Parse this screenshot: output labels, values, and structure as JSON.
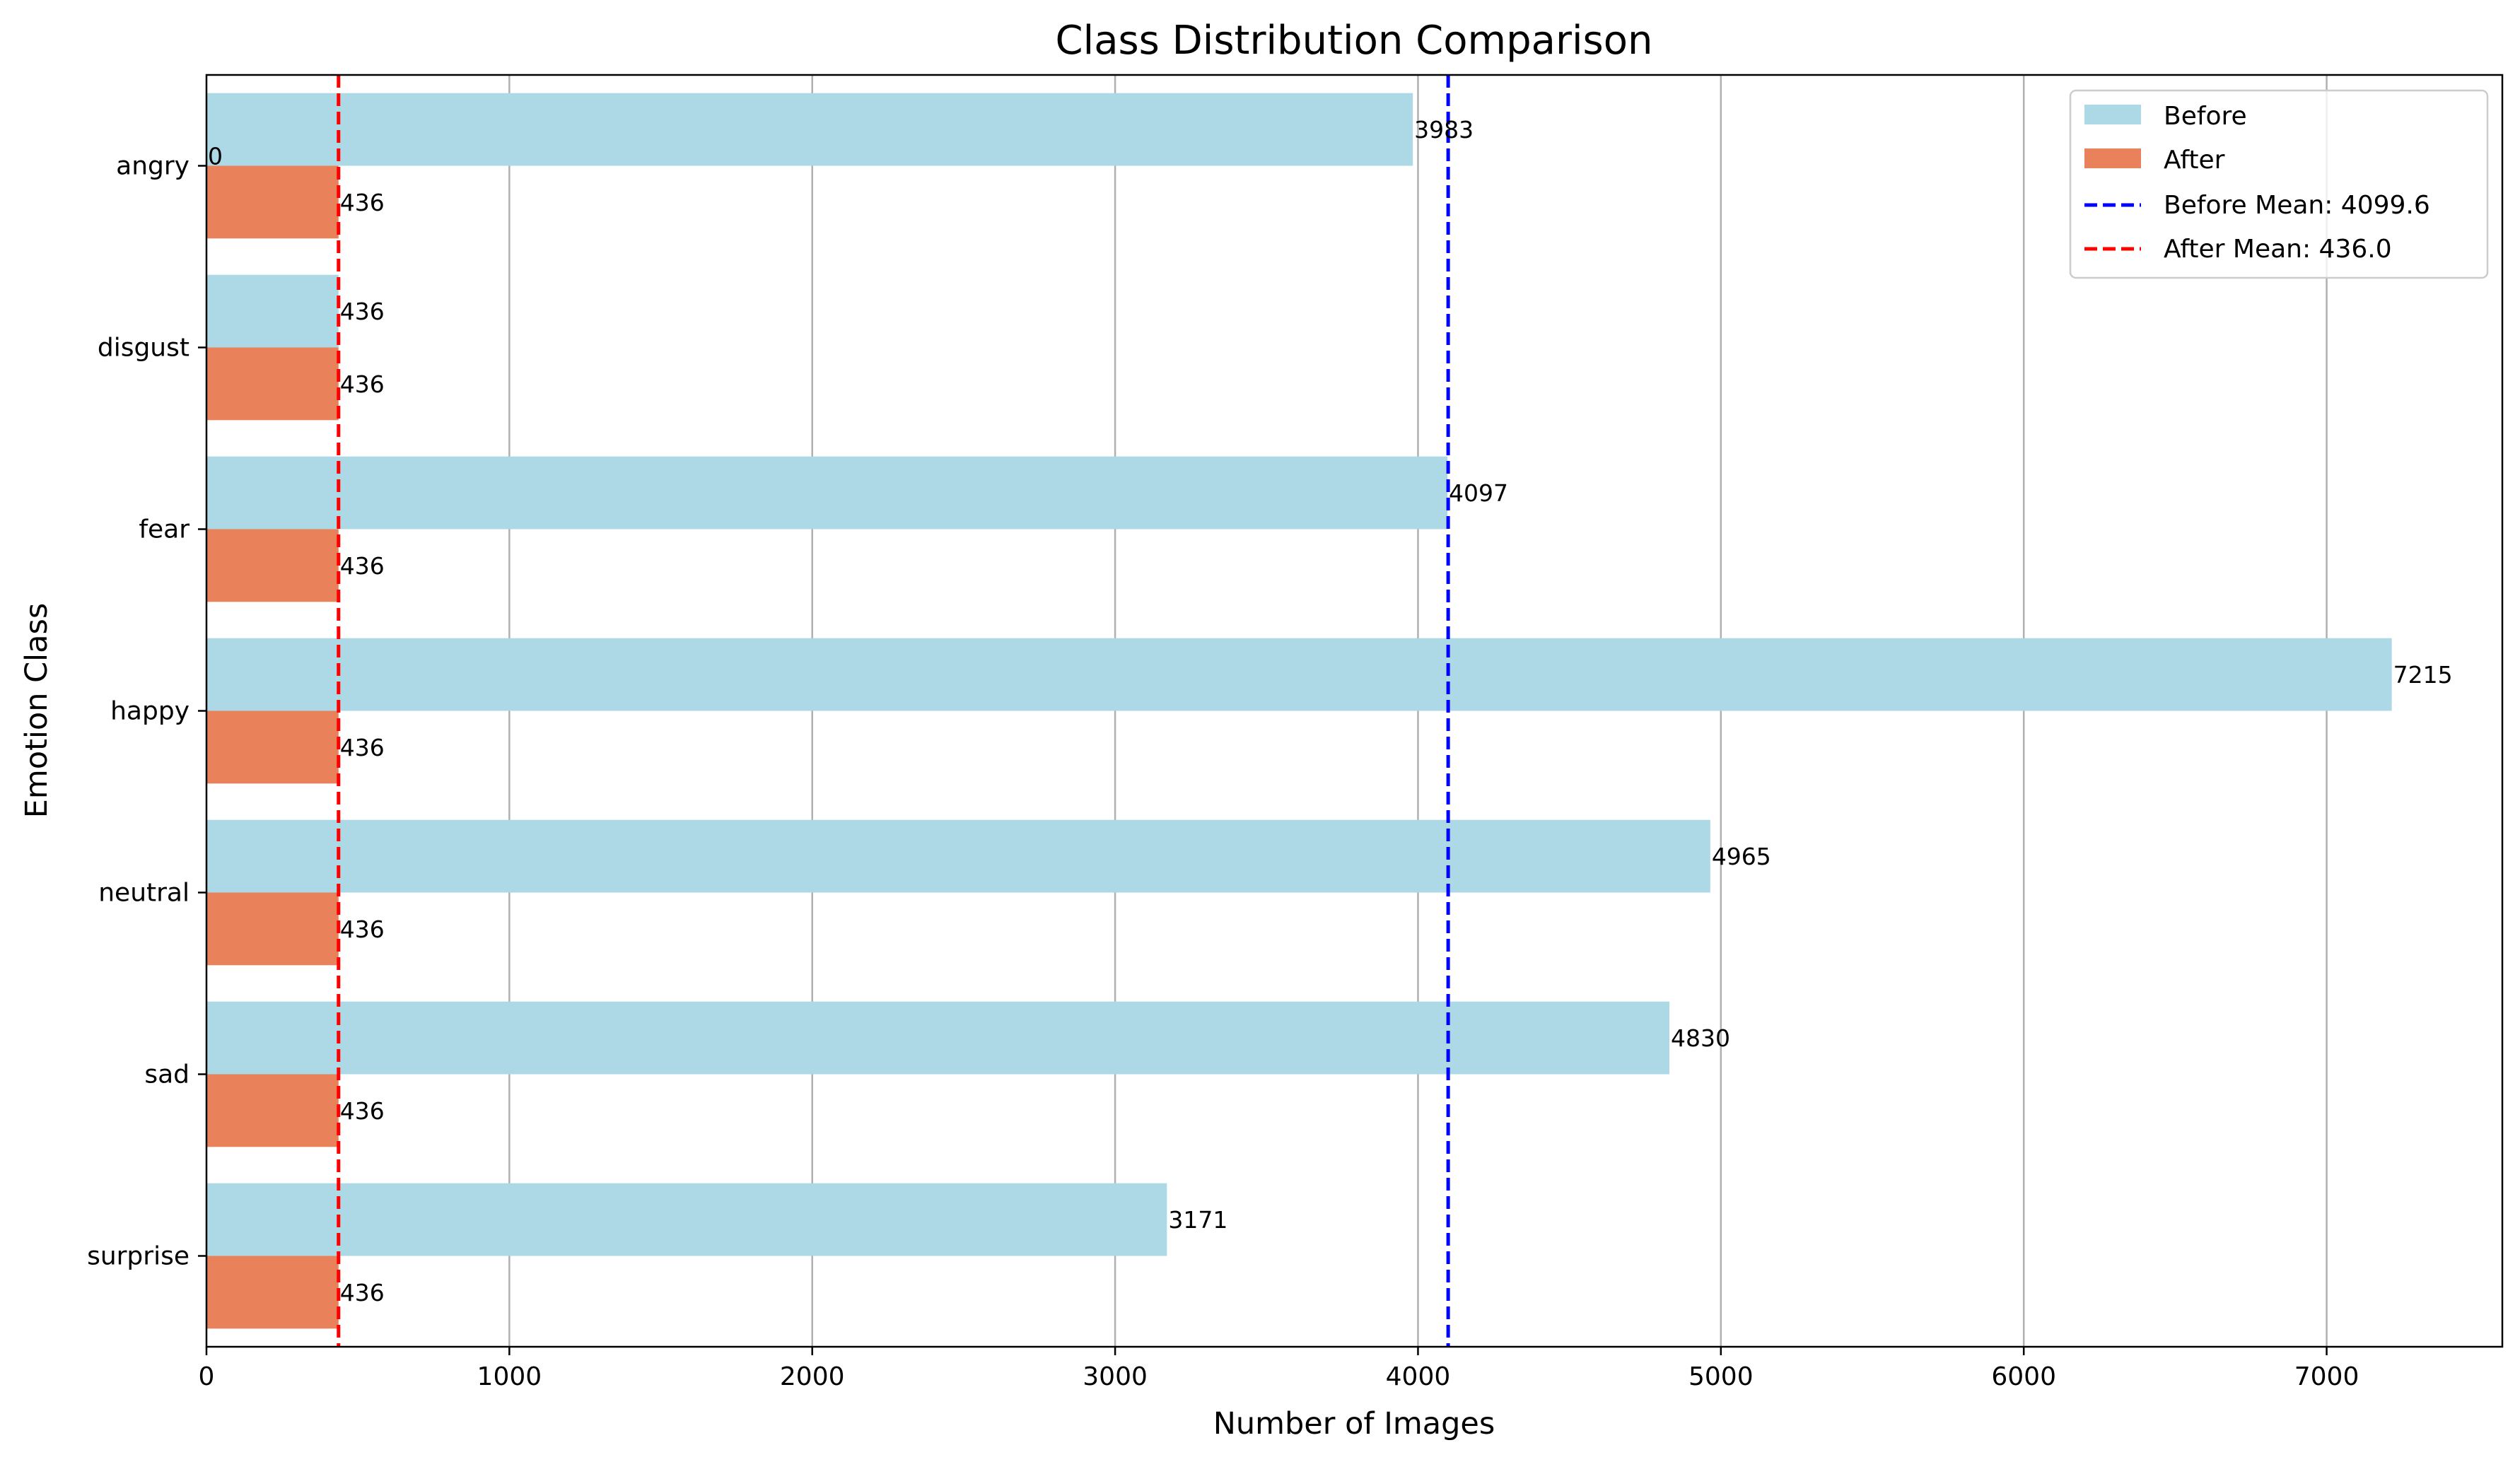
{
  "chart_data": {
    "type": "bar",
    "orientation": "horizontal",
    "title": "Class Distribution Comparison",
    "xlabel": "Number of Images",
    "ylabel": "Emotion Class",
    "categories": [
      "angry",
      "disgust",
      "fear",
      "happy",
      "neutral",
      "sad",
      "surprise"
    ],
    "series": [
      {
        "name": "Before",
        "color": "#add8e6",
        "values": [
          3983,
          436,
          4097,
          7215,
          4965,
          4830,
          3171
        ],
        "labels": [
          "3983",
          "436",
          "4097",
          "7215",
          "4965",
          "4830",
          "3171"
        ]
      },
      {
        "name": "After",
        "color": "#e9825a",
        "values": [
          436,
          436,
          436,
          436,
          436,
          436,
          436
        ],
        "labels": [
          "436",
          "436",
          "436",
          "436",
          "436",
          "436",
          "436"
        ]
      }
    ],
    "reference_lines": [
      {
        "name": "Before Mean: 4099.6",
        "value": 4099.6,
        "color": "#0000ff",
        "style": "dashed"
      },
      {
        "name": "After Mean: 436.0",
        "value": 436.0,
        "color": "#ff0000",
        "style": "dashed"
      }
    ],
    "stray_label": "0",
    "xlim": [
      0,
      7580
    ],
    "xticks": [
      0,
      1000,
      2000,
      3000,
      4000,
      5000,
      6000,
      7000
    ],
    "xtick_labels": [
      "0",
      "1000",
      "2000",
      "3000",
      "4000",
      "5000",
      "6000",
      "7000"
    ],
    "grid": "x-major",
    "legend": "top-right"
  }
}
